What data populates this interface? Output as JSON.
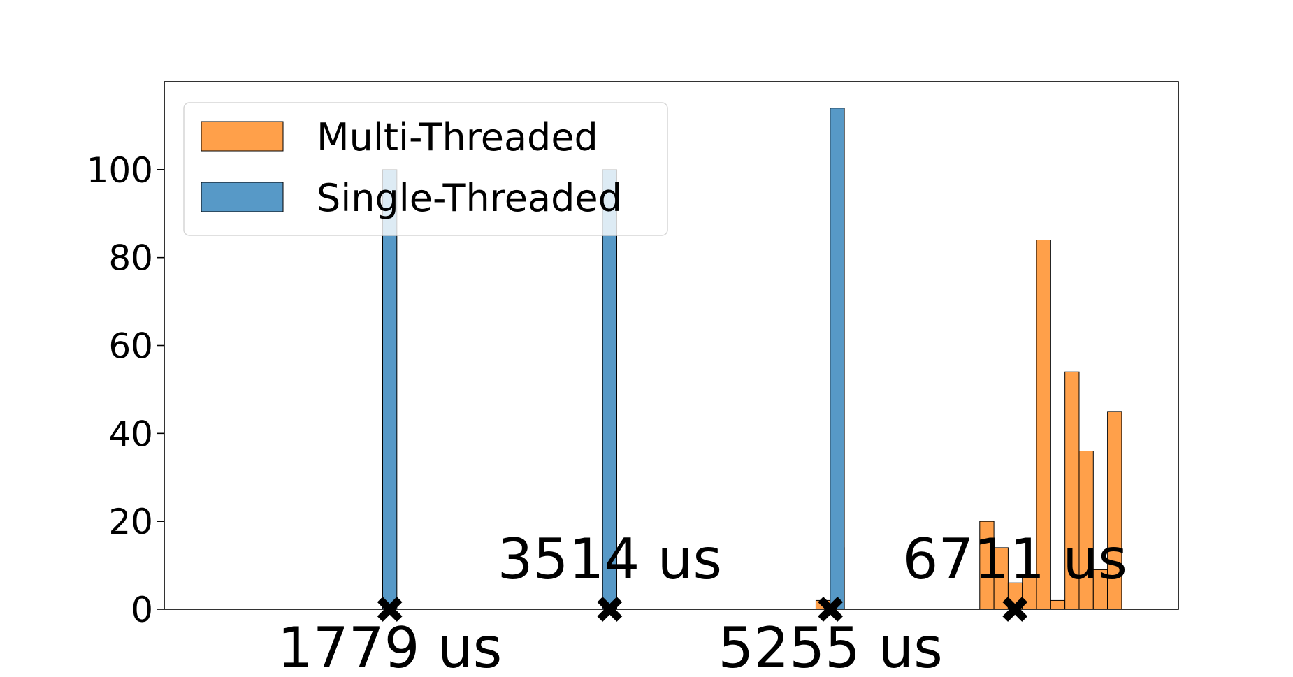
{
  "chart_data": {
    "type": "bar",
    "title": "",
    "xlabel": "",
    "ylabel": "",
    "ylim": [
      0,
      120
    ],
    "yticks": [
      0,
      20,
      40,
      60,
      80,
      100
    ],
    "xlim": [
      0,
      8000
    ],
    "grid": false,
    "legend_position": "top-left",
    "bin_width": 112,
    "series": [
      {
        "name": "Multi-Threaded",
        "color": "#ffa04a",
        "bars": [
          {
            "x": 5197,
            "value": 2
          },
          {
            "x": 5309,
            "value": 14
          },
          {
            "x": 6489,
            "value": 20
          },
          {
            "x": 6601,
            "value": 14
          },
          {
            "x": 6713,
            "value": 6
          },
          {
            "x": 6825,
            "value": 8
          },
          {
            "x": 6937,
            "value": 84
          },
          {
            "x": 7049,
            "value": 2
          },
          {
            "x": 7161,
            "value": 54
          },
          {
            "x": 7273,
            "value": 36
          },
          {
            "x": 7385,
            "value": 9
          },
          {
            "x": 7497,
            "value": 45
          }
        ]
      },
      {
        "name": "Single-Threaded",
        "color": "#5799c7",
        "bars": [
          {
            "x": 1779,
            "value": 100
          },
          {
            "x": 3514,
            "value": 100
          },
          {
            "x": 5309,
            "value": 114
          }
        ]
      }
    ],
    "markers": [
      {
        "x": 1779,
        "label": "1779 us",
        "label_pos": "below"
      },
      {
        "x": 3514,
        "label": "3514 us",
        "label_pos": "above"
      },
      {
        "x": 5255,
        "label": "5255 us",
        "label_pos": "below"
      },
      {
        "x": 6711,
        "label": "6711 us",
        "label_pos": "above"
      }
    ]
  }
}
